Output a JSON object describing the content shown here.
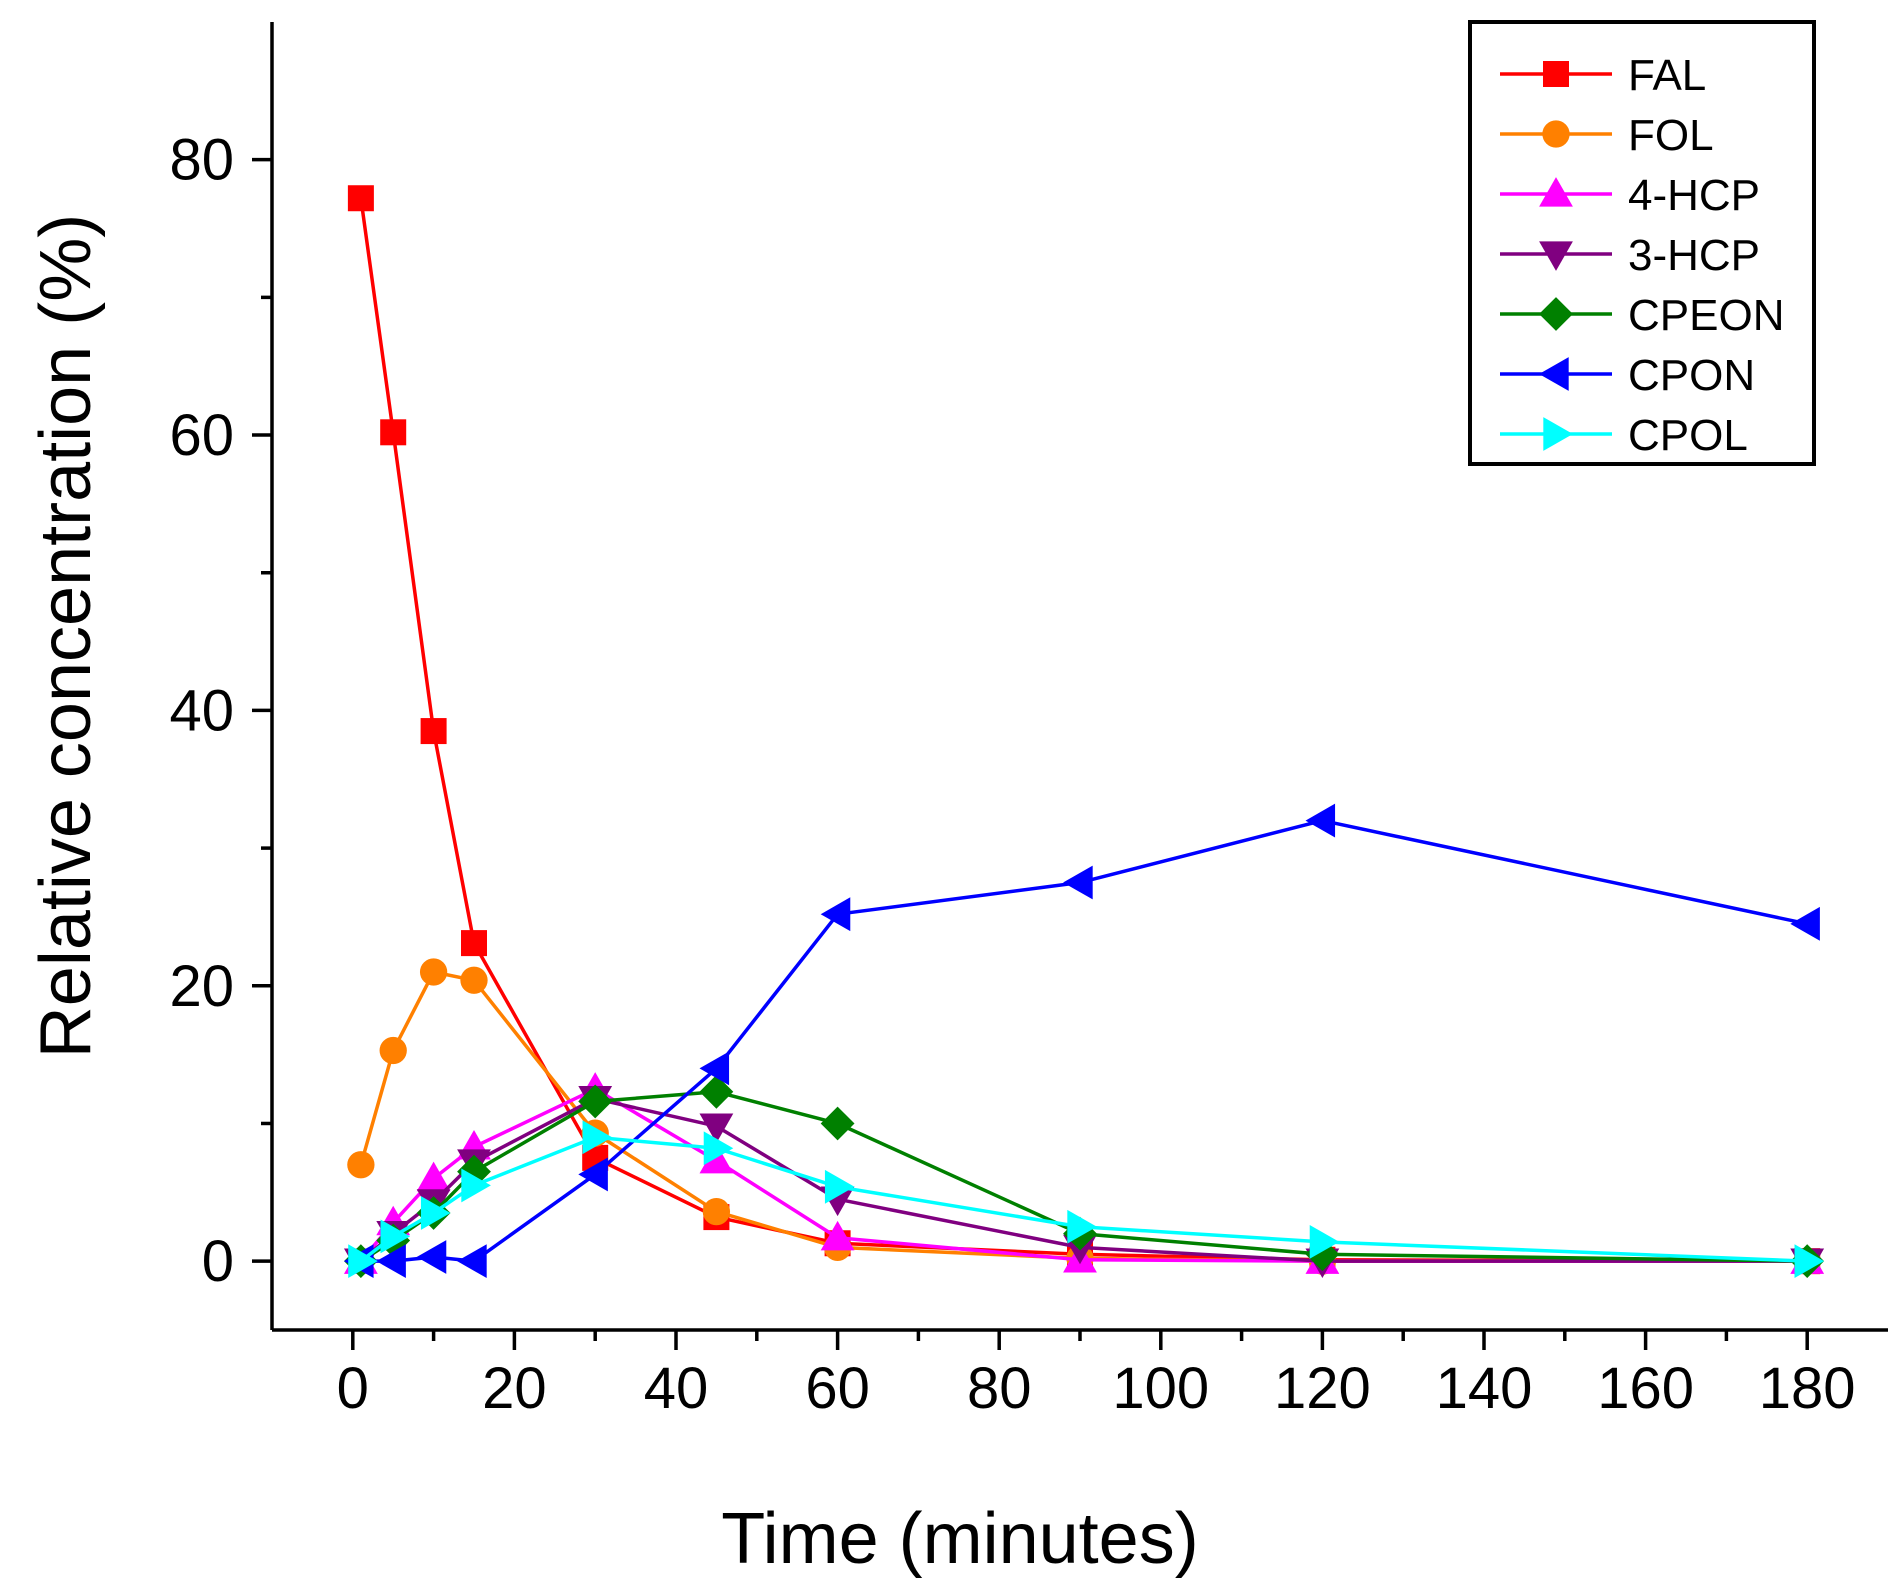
{
  "chart_data": {
    "type": "line",
    "title": "",
    "xlabel": "Time (minutes)",
    "ylabel": "Relative concentration (%)",
    "xlim": [
      -10,
      190
    ],
    "ylim": [
      -5,
      90
    ],
    "xticks": [
      0,
      20,
      40,
      60,
      80,
      100,
      120,
      140,
      160,
      180
    ],
    "yticks": [
      0,
      20,
      40,
      60,
      80
    ],
    "grid": false,
    "legend_position": "top-right",
    "series": [
      {
        "name": "FAL",
        "color": "#ff0000",
        "marker": "square",
        "x": [
          1,
          5,
          10,
          15,
          30,
          45,
          60,
          90,
          120,
          180
        ],
        "y": [
          77.2,
          60.2,
          38.5,
          23.1,
          7.5,
          3.2,
          1.3,
          0.5,
          0.1,
          0.0
        ]
      },
      {
        "name": "FOL",
        "color": "#ff8000",
        "marker": "circle",
        "x": [
          1,
          5,
          10,
          15,
          30,
          45,
          60,
          90,
          120,
          180
        ],
        "y": [
          7.0,
          15.3,
          21.0,
          20.4,
          9.3,
          3.6,
          1.0,
          0.2,
          0.0,
          0.0
        ]
      },
      {
        "name": "4-HCP",
        "color": "#ff00ff",
        "marker": "triangle-up",
        "x": [
          1,
          5,
          10,
          15,
          30,
          45,
          60,
          90,
          120,
          180
        ],
        "y": [
          0.0,
          2.8,
          6.0,
          8.3,
          12.5,
          7.3,
          1.7,
          0.1,
          0.0,
          0.0
        ]
      },
      {
        "name": "3-HCP",
        "color": "#800080",
        "marker": "triangle-down",
        "x": [
          1,
          5,
          10,
          15,
          30,
          45,
          60,
          90,
          120,
          180
        ],
        "y": [
          0.0,
          2.0,
          4.3,
          7.2,
          11.8,
          9.8,
          4.5,
          1.0,
          0.0,
          0.0
        ]
      },
      {
        "name": "CPEON",
        "color": "#008000",
        "marker": "diamond",
        "x": [
          1,
          5,
          10,
          15,
          30,
          45,
          60,
          90,
          120,
          180
        ],
        "y": [
          0.0,
          1.5,
          3.5,
          6.5,
          11.6,
          12.3,
          10.0,
          2.0,
          0.5,
          0.0
        ]
      },
      {
        "name": "CPON",
        "color": "#0000ff",
        "marker": "triangle-left",
        "x": [
          1,
          5,
          10,
          15,
          30,
          45,
          60,
          90,
          120,
          180
        ],
        "y": [
          0.0,
          0.0,
          0.3,
          0.0,
          6.3,
          14.0,
          25.2,
          27.5,
          32.0,
          24.5
        ]
      },
      {
        "name": "CPOL",
        "color": "#00ffff",
        "marker": "triangle-right",
        "x": [
          1,
          5,
          10,
          15,
          30,
          45,
          60,
          90,
          120,
          180
        ],
        "y": [
          0.0,
          1.8,
          3.5,
          5.5,
          9.0,
          8.2,
          5.4,
          2.5,
          1.4,
          0.0
        ]
      }
    ]
  }
}
